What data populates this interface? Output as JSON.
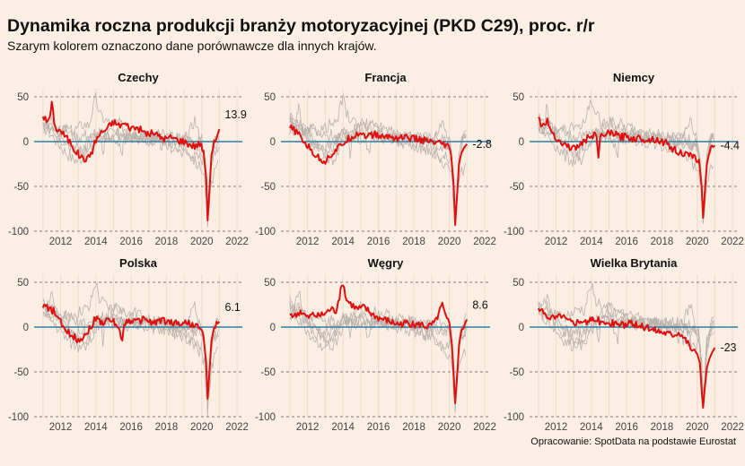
{
  "title": "Dynamika roczna produkcji branży motoryzacyjnej (PKD C29), proc. r/r",
  "subtitle": "Szarym kolorem oznaczono dane porównawcze dla innych krajów.",
  "source": "Opracowanie: SpotData na podstawie Eurostat",
  "colors": {
    "highlight": "#e01010",
    "comparison": "#b8b2ac",
    "zero_line": "#2e7fa8",
    "background": "#fbeee2",
    "grid": "#f2dccb"
  },
  "chart_data": {
    "type": "line",
    "xlim": [
      2010.5,
      2022.3
    ],
    "ylim": [
      -100,
      55
    ],
    "x_ticks": [
      "2012",
      "2014",
      "2016",
      "2018",
      "2020",
      "2022"
    ],
    "y_ticks": [
      "50",
      "0",
      "-50",
      "-100"
    ],
    "grid": "dashed horizontal at 50, -50, -100; zero line solid blue",
    "panels": [
      {
        "name": "Czechy",
        "end_label": "13.9",
        "points": [
          [
            2011.0,
            30
          ],
          [
            2011.2,
            22
          ],
          [
            2011.4,
            28
          ],
          [
            2011.5,
            42
          ],
          [
            2011.7,
            15
          ],
          [
            2012.0,
            12
          ],
          [
            2012.3,
            5
          ],
          [
            2012.6,
            -2
          ],
          [
            2012.9,
            -12
          ],
          [
            2013.2,
            -18
          ],
          [
            2013.5,
            -20
          ],
          [
            2013.8,
            -10
          ],
          [
            2014.0,
            2
          ],
          [
            2014.3,
            10
          ],
          [
            2014.6,
            14
          ],
          [
            2015.0,
            22
          ],
          [
            2015.3,
            18
          ],
          [
            2015.6,
            20
          ],
          [
            2016.0,
            15
          ],
          [
            2016.3,
            16
          ],
          [
            2016.6,
            12
          ],
          [
            2017.0,
            8
          ],
          [
            2017.3,
            10
          ],
          [
            2017.6,
            5
          ],
          [
            2018.0,
            3
          ],
          [
            2018.3,
            5
          ],
          [
            2018.6,
            2
          ],
          [
            2019.0,
            0
          ],
          [
            2019.3,
            -3
          ],
          [
            2019.6,
            -5
          ],
          [
            2019.9,
            -2
          ],
          [
            2020.1,
            -10
          ],
          [
            2020.25,
            -40
          ],
          [
            2020.33,
            -88
          ],
          [
            2020.42,
            -60
          ],
          [
            2020.55,
            -15
          ],
          [
            2020.7,
            -2
          ],
          [
            2020.9,
            8
          ],
          [
            2021.0,
            13.9
          ]
        ]
      },
      {
        "name": "Francja",
        "end_label": "-2.8",
        "points": [
          [
            2011.0,
            15
          ],
          [
            2011.3,
            12
          ],
          [
            2011.6,
            5
          ],
          [
            2012.0,
            -5
          ],
          [
            2012.3,
            -12
          ],
          [
            2012.6,
            -18
          ],
          [
            2013.0,
            -22
          ],
          [
            2013.3,
            -15
          ],
          [
            2013.7,
            -8
          ],
          [
            2014.0,
            -2
          ],
          [
            2014.3,
            3
          ],
          [
            2014.7,
            8
          ],
          [
            2015.0,
            10
          ],
          [
            2015.4,
            6
          ],
          [
            2015.8,
            8
          ],
          [
            2016.2,
            5
          ],
          [
            2016.6,
            6
          ],
          [
            2017.0,
            4
          ],
          [
            2017.5,
            5
          ],
          [
            2018.0,
            3
          ],
          [
            2018.4,
            2
          ],
          [
            2018.8,
            0
          ],
          [
            2019.2,
            -2
          ],
          [
            2019.6,
            -3
          ],
          [
            2019.9,
            -5
          ],
          [
            2020.1,
            -15
          ],
          [
            2020.25,
            -50
          ],
          [
            2020.33,
            -93
          ],
          [
            2020.42,
            -65
          ],
          [
            2020.55,
            -25
          ],
          [
            2020.7,
            -10
          ],
          [
            2020.9,
            -5
          ],
          [
            2021.0,
            -2.8
          ]
        ]
      },
      {
        "name": "Niemcy",
        "end_label": "-4.4",
        "points": [
          [
            2011.0,
            25
          ],
          [
            2011.2,
            18
          ],
          [
            2011.5,
            22
          ],
          [
            2011.8,
            10
          ],
          [
            2012.0,
            5
          ],
          [
            2012.3,
            -2
          ],
          [
            2012.7,
            -5
          ],
          [
            2013.0,
            -8
          ],
          [
            2013.4,
            -3
          ],
          [
            2013.7,
            2
          ],
          [
            2014.0,
            8
          ],
          [
            2014.3,
            5
          ],
          [
            2014.4,
            -18
          ],
          [
            2014.5,
            5
          ],
          [
            2014.8,
            8
          ],
          [
            2015.2,
            10
          ],
          [
            2015.6,
            5
          ],
          [
            2016.0,
            6
          ],
          [
            2016.4,
            3
          ],
          [
            2016.8,
            4
          ],
          [
            2017.2,
            2
          ],
          [
            2017.6,
            3
          ],
          [
            2018.0,
            0
          ],
          [
            2018.3,
            -2
          ],
          [
            2018.6,
            -8
          ],
          [
            2019.0,
            -12
          ],
          [
            2019.4,
            -15
          ],
          [
            2019.8,
            -18
          ],
          [
            2020.1,
            -20
          ],
          [
            2020.25,
            -50
          ],
          [
            2020.33,
            -85
          ],
          [
            2020.42,
            -60
          ],
          [
            2020.55,
            -25
          ],
          [
            2020.7,
            -10
          ],
          [
            2020.9,
            -6
          ],
          [
            2021.0,
            -4.4
          ]
        ]
      },
      {
        "name": "Polska",
        "end_label": "6.1",
        "points": [
          [
            2011.0,
            25
          ],
          [
            2011.3,
            20
          ],
          [
            2011.6,
            18
          ],
          [
            2012.0,
            5
          ],
          [
            2012.3,
            -5
          ],
          [
            2012.6,
            -8
          ],
          [
            2013.0,
            -15
          ],
          [
            2013.3,
            -10
          ],
          [
            2013.7,
            0
          ],
          [
            2014.0,
            10
          ],
          [
            2014.4,
            5
          ],
          [
            2014.8,
            8
          ],
          [
            2015.2,
            3
          ],
          [
            2015.5,
            -15
          ],
          [
            2015.6,
            5
          ],
          [
            2016.0,
            8
          ],
          [
            2016.4,
            6
          ],
          [
            2016.8,
            10
          ],
          [
            2017.2,
            4
          ],
          [
            2017.6,
            8
          ],
          [
            2018.0,
            6
          ],
          [
            2018.4,
            5
          ],
          [
            2018.8,
            4
          ],
          [
            2019.2,
            5
          ],
          [
            2019.6,
            2
          ],
          [
            2019.9,
            -2
          ],
          [
            2020.1,
            -10
          ],
          [
            2020.25,
            -40
          ],
          [
            2020.33,
            -80
          ],
          [
            2020.42,
            -55
          ],
          [
            2020.55,
            -15
          ],
          [
            2020.7,
            0
          ],
          [
            2020.9,
            4
          ],
          [
            2021.0,
            6.1
          ]
        ]
      },
      {
        "name": "Węgry",
        "end_label": "8.6",
        "points": [
          [
            2011.0,
            15
          ],
          [
            2011.3,
            12
          ],
          [
            2011.6,
            18
          ],
          [
            2012.0,
            10
          ],
          [
            2012.3,
            14
          ],
          [
            2012.6,
            12
          ],
          [
            2013.0,
            15
          ],
          [
            2013.3,
            20
          ],
          [
            2013.6,
            18
          ],
          [
            2014.0,
            50
          ],
          [
            2014.2,
            30
          ],
          [
            2014.5,
            25
          ],
          [
            2014.8,
            20
          ],
          [
            2015.2,
            22
          ],
          [
            2015.6,
            15
          ],
          [
            2016.0,
            10
          ],
          [
            2016.4,
            8
          ],
          [
            2016.8,
            5
          ],
          [
            2017.2,
            3
          ],
          [
            2017.6,
            5
          ],
          [
            2018.0,
            2
          ],
          [
            2018.4,
            3
          ],
          [
            2018.8,
            0
          ],
          [
            2019.2,
            5
          ],
          [
            2019.6,
            25
          ],
          [
            2019.8,
            10
          ],
          [
            2020.0,
            5
          ],
          [
            2020.15,
            -20
          ],
          [
            2020.25,
            -55
          ],
          [
            2020.33,
            -85
          ],
          [
            2020.42,
            -60
          ],
          [
            2020.55,
            -20
          ],
          [
            2020.7,
            -2
          ],
          [
            2020.9,
            5
          ],
          [
            2021.0,
            8.6
          ]
        ]
      },
      {
        "name": "Wielka Brytania",
        "end_label": "-23",
        "points": [
          [
            2011.0,
            20
          ],
          [
            2011.3,
            15
          ],
          [
            2011.6,
            12
          ],
          [
            2012.0,
            10
          ],
          [
            2012.3,
            14
          ],
          [
            2012.6,
            8
          ],
          [
            2013.0,
            5
          ],
          [
            2013.4,
            8
          ],
          [
            2013.8,
            5
          ],
          [
            2014.2,
            10
          ],
          [
            2014.6,
            5
          ],
          [
            2015.0,
            3
          ],
          [
            2015.4,
            5
          ],
          [
            2015.8,
            2
          ],
          [
            2016.2,
            4
          ],
          [
            2016.6,
            2
          ],
          [
            2017.0,
            0
          ],
          [
            2017.4,
            -2
          ],
          [
            2017.8,
            -4
          ],
          [
            2018.2,
            -6
          ],
          [
            2018.6,
            -8
          ],
          [
            2019.0,
            -5
          ],
          [
            2019.4,
            -15
          ],
          [
            2019.7,
            -25
          ],
          [
            2020.0,
            -30
          ],
          [
            2020.15,
            -40
          ],
          [
            2020.25,
            -70
          ],
          [
            2020.33,
            -90
          ],
          [
            2020.42,
            -70
          ],
          [
            2020.55,
            -45
          ],
          [
            2020.7,
            -35
          ],
          [
            2020.85,
            -28
          ],
          [
            2021.0,
            -23
          ]
        ]
      }
    ]
  }
}
